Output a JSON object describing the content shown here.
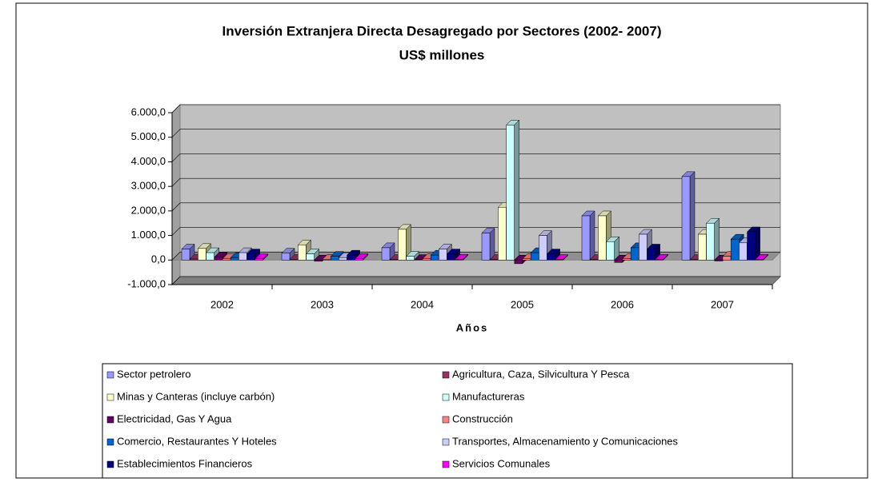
{
  "chart_data": {
    "type": "bar3d",
    "title": "Inversión Extranjera Directa Desagregado por Sectores (2002- 2007)",
    "subtitle": "US$ millones",
    "x_label": "Años",
    "categories": [
      "2002",
      "2003",
      "2004",
      "2005",
      "2006",
      "2007"
    ],
    "series": [
      {
        "name": "Sector petrolero",
        "color": "#9999ff",
        "values": [
          450,
          280,
          500,
          1100,
          1800,
          3400
        ]
      },
      {
        "name": "Agricultura, Caza, Silvicultura Y Pesca",
        "color": "#993366",
        "values": [
          40,
          30,
          20,
          20,
          20,
          20
        ]
      },
      {
        "name": "Minas y Canteras (incluye carbón)",
        "color": "#ffffcc",
        "values": [
          470,
          620,
          1250,
          2150,
          1800,
          1050
        ]
      },
      {
        "name": "Manufactureras",
        "color": "#ccffff",
        "values": [
          300,
          250,
          150,
          5500,
          750,
          1500
        ]
      },
      {
        "name": "Electricidad, Gas Y Agua",
        "color": "#660066",
        "values": [
          120,
          -50,
          20,
          -150,
          -100,
          -40
        ]
      },
      {
        "name": "Construcción",
        "color": "#ff8080",
        "values": [
          50,
          30,
          50,
          50,
          60,
          150
        ]
      },
      {
        "name": "Comercio, Restaurantes Y Hoteles",
        "color": "#0066cc",
        "values": [
          100,
          150,
          200,
          300,
          500,
          850
        ]
      },
      {
        "name": "Transportes, Almacenamiento y Comunicaciones",
        "color": "#ccccff",
        "values": [
          300,
          100,
          450,
          1000,
          1050,
          700
        ]
      },
      {
        "name": "Establecimientos Financieros",
        "color": "#000080",
        "values": [
          250,
          200,
          250,
          250,
          450,
          1150
        ]
      },
      {
        "name": "Servicios Comunales",
        "color": "#ff00ff",
        "values": [
          50,
          60,
          30,
          20,
          30,
          30
        ]
      }
    ],
    "ylim": [
      -1000,
      6000
    ],
    "yticks": [
      {
        "value": -1000,
        "label": "-1.000,0"
      },
      {
        "value": 0,
        "label": "0,0"
      },
      {
        "value": 1000,
        "label": "1.000,0"
      },
      {
        "value": 2000,
        "label": "2.000,0"
      },
      {
        "value": 3000,
        "label": "3.000,0"
      },
      {
        "value": 4000,
        "label": "4.000,0"
      },
      {
        "value": 5000,
        "label": "5.000,0"
      },
      {
        "value": 6000,
        "label": "6.000,0"
      }
    ],
    "grid": true,
    "legend": "bottom"
  }
}
